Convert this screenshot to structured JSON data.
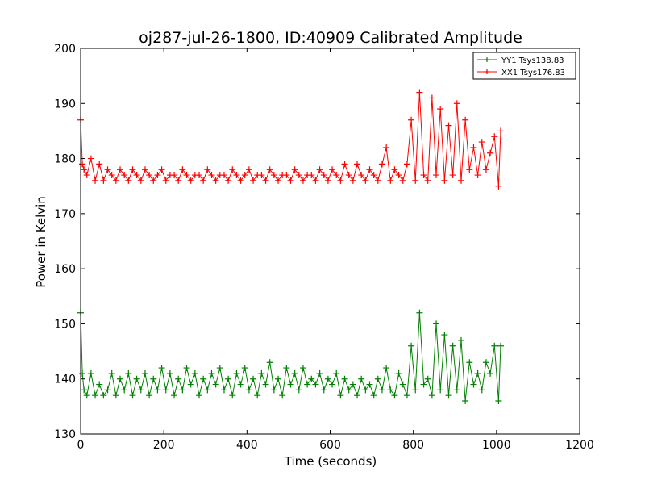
{
  "chart_data": {
    "type": "line",
    "title": "oj287-jul-26-1800, ID:40909 Calibrated Amplitude",
    "xlabel": "Time (seconds)",
    "ylabel": "Power in Kelvin",
    "xlim": [
      0,
      1200
    ],
    "ylim": [
      130,
      200
    ],
    "xticks": [
      0,
      200,
      400,
      600,
      800,
      1000,
      1200
    ],
    "yticks": [
      130,
      140,
      150,
      160,
      170,
      180,
      190,
      200
    ],
    "grid": false,
    "legend_position": "top-right",
    "marker": "+",
    "series": [
      {
        "name": "YY1 Tsys138.83",
        "color": "#008000",
        "x": [
          0,
          4,
          8,
          15,
          25,
          35,
          45,
          55,
          65,
          75,
          85,
          95,
          105,
          115,
          125,
          135,
          145,
          155,
          165,
          175,
          185,
          195,
          205,
          215,
          225,
          235,
          245,
          255,
          265,
          275,
          285,
          295,
          305,
          315,
          325,
          335,
          345,
          355,
          365,
          375,
          385,
          395,
          405,
          415,
          425,
          435,
          445,
          455,
          465,
          475,
          485,
          495,
          505,
          515,
          525,
          535,
          545,
          555,
          565,
          575,
          585,
          595,
          605,
          615,
          625,
          635,
          645,
          655,
          665,
          675,
          685,
          695,
          705,
          715,
          725,
          735,
          745,
          755,
          765,
          775,
          785,
          795,
          805,
          815,
          825,
          835,
          845,
          855,
          865,
          875,
          885,
          895,
          905,
          915,
          925,
          935,
          945,
          955,
          965,
          975,
          985,
          995,
          1005,
          1010
        ],
        "y": [
          152,
          141,
          138,
          137,
          141,
          137,
          139,
          137,
          138,
          141,
          137,
          140,
          138,
          141,
          137,
          140,
          138,
          141,
          137,
          140,
          138,
          142,
          138,
          141,
          137,
          140,
          138,
          142,
          139,
          141,
          137,
          140,
          138,
          141,
          139,
          142,
          138,
          140,
          137,
          141,
          139,
          142,
          138,
          140,
          137,
          141,
          139,
          143,
          138,
          140,
          137,
          142,
          139,
          141,
          138,
          142,
          139,
          140,
          139,
          141,
          138,
          140,
          139,
          141,
          137,
          140,
          138,
          139,
          137,
          140,
          138,
          139,
          137,
          140,
          138,
          142,
          138,
          137,
          141,
          139,
          137,
          146,
          138,
          152,
          139,
          140,
          137,
          150,
          138,
          148,
          137,
          146,
          138,
          147,
          136,
          143,
          139,
          141,
          138,
          143,
          141,
          146,
          136,
          146
        ]
      },
      {
        "name": "XX1 Tsys176.83",
        "color": "#ff0000",
        "x": [
          0,
          4,
          8,
          15,
          25,
          35,
          45,
          55,
          65,
          75,
          85,
          95,
          105,
          115,
          125,
          135,
          145,
          155,
          165,
          175,
          185,
          195,
          205,
          215,
          225,
          235,
          245,
          255,
          265,
          275,
          285,
          295,
          305,
          315,
          325,
          335,
          345,
          355,
          365,
          375,
          385,
          395,
          405,
          415,
          425,
          435,
          445,
          455,
          465,
          475,
          485,
          495,
          505,
          515,
          525,
          535,
          545,
          555,
          565,
          575,
          585,
          595,
          605,
          615,
          625,
          635,
          645,
          655,
          665,
          675,
          685,
          695,
          705,
          715,
          725,
          735,
          745,
          755,
          765,
          775,
          785,
          795,
          805,
          815,
          825,
          835,
          845,
          855,
          865,
          875,
          885,
          895,
          905,
          915,
          925,
          935,
          945,
          955,
          965,
          975,
          985,
          995,
          1005,
          1010
        ],
        "y": [
          187,
          179,
          178,
          177,
          180,
          176,
          179,
          176,
          178,
          177,
          176,
          178,
          177,
          176,
          178,
          177,
          176,
          178,
          177,
          176,
          177,
          178,
          176,
          177,
          177,
          176,
          178,
          177,
          176,
          177,
          177,
          176,
          178,
          177,
          176,
          177,
          177,
          176,
          178,
          177,
          176,
          177,
          178,
          176,
          177,
          177,
          176,
          178,
          177,
          176,
          177,
          177,
          176,
          178,
          177,
          176,
          177,
          177,
          176,
          178,
          177,
          176,
          178,
          177,
          176,
          179,
          177,
          176,
          179,
          177,
          176,
          178,
          177,
          176,
          179,
          182,
          176,
          178,
          177,
          176,
          179,
          187,
          176,
          192,
          177,
          176,
          191,
          177,
          189,
          176,
          186,
          177,
          190,
          176,
          187,
          178,
          182,
          177,
          183,
          178,
          181,
          184,
          175,
          185
        ]
      }
    ]
  }
}
